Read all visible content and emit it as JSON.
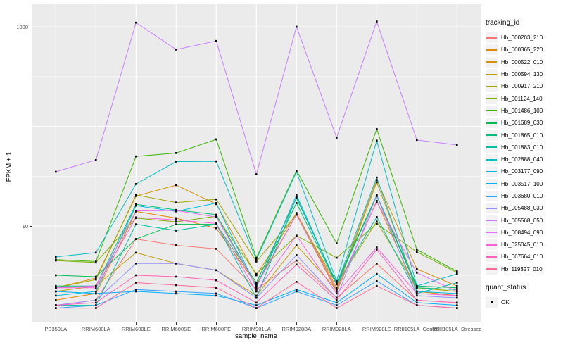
{
  "axes": {
    "y": {
      "label": "FPKM + 1",
      "tick_labels": [
        "1000",
        "10"
      ],
      "tick_values": [
        1000,
        10
      ]
    },
    "x": {
      "label": "sample_name"
    }
  },
  "legend": {
    "tracking_title": "tracking_id",
    "quant_title": "quant_status",
    "quant_ok_label": "OK"
  },
  "colors": {
    "panel_bg": "#EBEBEB",
    "grid": "#FFFFFF",
    "tick_text": "#4D4D4D",
    "axis_title_text": "#000000",
    "legend_key_bg": "#F2F2F2",
    "point": "#000000"
  },
  "chart_data": {
    "type": "line",
    "yscale": "log10",
    "xlabel": "sample_name",
    "ylabel": "FPKM + 1",
    "ylim": [
      1.3,
      1600
    ],
    "y_major_ticks": [
      10,
      1000
    ],
    "y_major_grid": [
      10,
      100,
      1000
    ],
    "y_minor_grid": [
      3.162,
      31.62,
      316.2
    ],
    "grid": true,
    "legend_position": "right",
    "point_shape": "filled-black-square",
    "quant_status": "OK",
    "categories": [
      "PB350LA",
      "RRIM600LA",
      "RRIM600LE",
      "RRIM600SE",
      "RRIM600PE",
      "RRIM901LA",
      "RRIM928BA",
      "RRIM928LA",
      "RRIM928LE",
      "RRII105LA_Control",
      "RRII105LA_Stressed"
    ],
    "series": [
      {
        "name": "Hb_000203_210",
        "color": "#F8766D",
        "values": [
          1.6,
          1.8,
          7.4,
          6.4,
          5.9,
          2.3,
          4.5,
          1.9,
          4.2,
          1.8,
          1.7
        ]
      },
      {
        "name": "Hb_000365_220",
        "color": "#E58700",
        "values": [
          1.8,
          2.1,
          14,
          12,
          9.5,
          2.6,
          13,
          2.2,
          17.9,
          2.2,
          2.0
        ]
      },
      {
        "name": "Hb_000522_010",
        "color": "#D89000",
        "values": [
          2.4,
          3.0,
          20,
          25.7,
          16.6,
          3.2,
          13.5,
          2.4,
          29,
          3.7,
          2.5
        ]
      },
      {
        "name": "Hb_000594_130",
        "color": "#C09B00",
        "values": [
          2.2,
          2.5,
          5.4,
          4.2,
          3.6,
          2.0,
          6.4,
          2.3,
          27.5,
          2.4,
          2.2
        ]
      },
      {
        "name": "Hb_000917_210",
        "color": "#A3A500",
        "values": [
          2.4,
          2.9,
          20.5,
          17.2,
          18.5,
          4.4,
          13,
          2.6,
          11.1,
          2.4,
          2.2
        ]
      },
      {
        "name": "Hb_001124_140",
        "color": "#7CAE00",
        "values": [
          4.5,
          4.3,
          12,
          11,
          12.5,
          3.3,
          8.0,
          4.8,
          10.5,
          5.5,
          3.4
        ]
      },
      {
        "name": "Hb_001486_100",
        "color": "#39B600",
        "values": [
          4.6,
          4.4,
          50,
          54,
          74,
          4.8,
          36,
          6.7,
          94,
          5.8,
          3.5
        ]
      },
      {
        "name": "Hb_001689_030",
        "color": "#00BB4E",
        "values": [
          3.2,
          3.1,
          7.4,
          10.4,
          10.4,
          2.7,
          19,
          2.7,
          20.4,
          2.5,
          2.4
        ]
      },
      {
        "name": "Hb_001865_010",
        "color": "#00BF7D",
        "values": [
          2.5,
          2.5,
          16.5,
          14.5,
          13,
          2.5,
          17,
          2.6,
          20,
          2.4,
          2.3
        ]
      },
      {
        "name": "Hb_001883_010",
        "color": "#00C1A3",
        "values": [
          1.6,
          1.6,
          10.4,
          9.0,
          10.4,
          1.9,
          19.5,
          2.6,
          12.3,
          2.1,
          2.7
        ]
      },
      {
        "name": "Hb_002888_040",
        "color": "#00BFC4",
        "values": [
          4.9,
          5.4,
          26.4,
          44.3,
          44.6,
          4.6,
          35,
          2.8,
          72,
          2.5,
          3.3
        ]
      },
      {
        "name": "Hb_003177_090",
        "color": "#00BAE0",
        "values": [
          2.0,
          2.2,
          16,
          14,
          17,
          2.4,
          20.5,
          2.6,
          30.7,
          2.2,
          2.1
        ]
      },
      {
        "name": "Hb_003517_100",
        "color": "#00B0F6",
        "values": [
          2.2,
          2.1,
          2.2,
          2.1,
          2.0,
          1.6,
          2.3,
          1.7,
          3.3,
          1.7,
          1.6
        ]
      },
      {
        "name": "Hb_003680_010",
        "color": "#35A2FF",
        "values": [
          1.5,
          1.6,
          2.3,
          2.2,
          2.1,
          1.5,
          2.2,
          1.6,
          2.8,
          1.6,
          1.5
        ]
      },
      {
        "name": "Hb_005488_030",
        "color": "#9590FF",
        "values": [
          1.6,
          1.8,
          4.2,
          4.2,
          3.6,
          1.9,
          5.1,
          1.9,
          20.4,
          2.0,
          1.9
        ]
      },
      {
        "name": "Hb_005568_050",
        "color": "#C77CFF",
        "values": [
          35,
          46,
          1100,
          590,
          720,
          33,
          1000,
          77,
          1130,
          73,
          65
        ]
      },
      {
        "name": "Hb_008494_090",
        "color": "#E76BF3",
        "values": [
          2.4,
          2.5,
          14.2,
          14.3,
          12.3,
          2.5,
          13,
          2.3,
          17.5,
          3.4,
          2.2
        ]
      },
      {
        "name": "Hb_025045_010",
        "color": "#FA62DB",
        "values": [
          2.4,
          2.4,
          12.2,
          11.5,
          10.6,
          2.2,
          8.0,
          2.1,
          6.1,
          2.1,
          2.0
        ]
      },
      {
        "name": "Hb_067664_010",
        "color": "#FF62BC",
        "values": [
          1.6,
          1.7,
          3.2,
          3.1,
          2.85,
          1.7,
          4.1,
          1.8,
          5.8,
          1.8,
          1.7
        ]
      },
      {
        "name": "Hb_119327_010",
        "color": "#FF6A98",
        "values": [
          1.5,
          1.5,
          2.7,
          2.55,
          2.4,
          1.5,
          2.75,
          1.5,
          2.5,
          1.6,
          1.5
        ]
      }
    ]
  }
}
